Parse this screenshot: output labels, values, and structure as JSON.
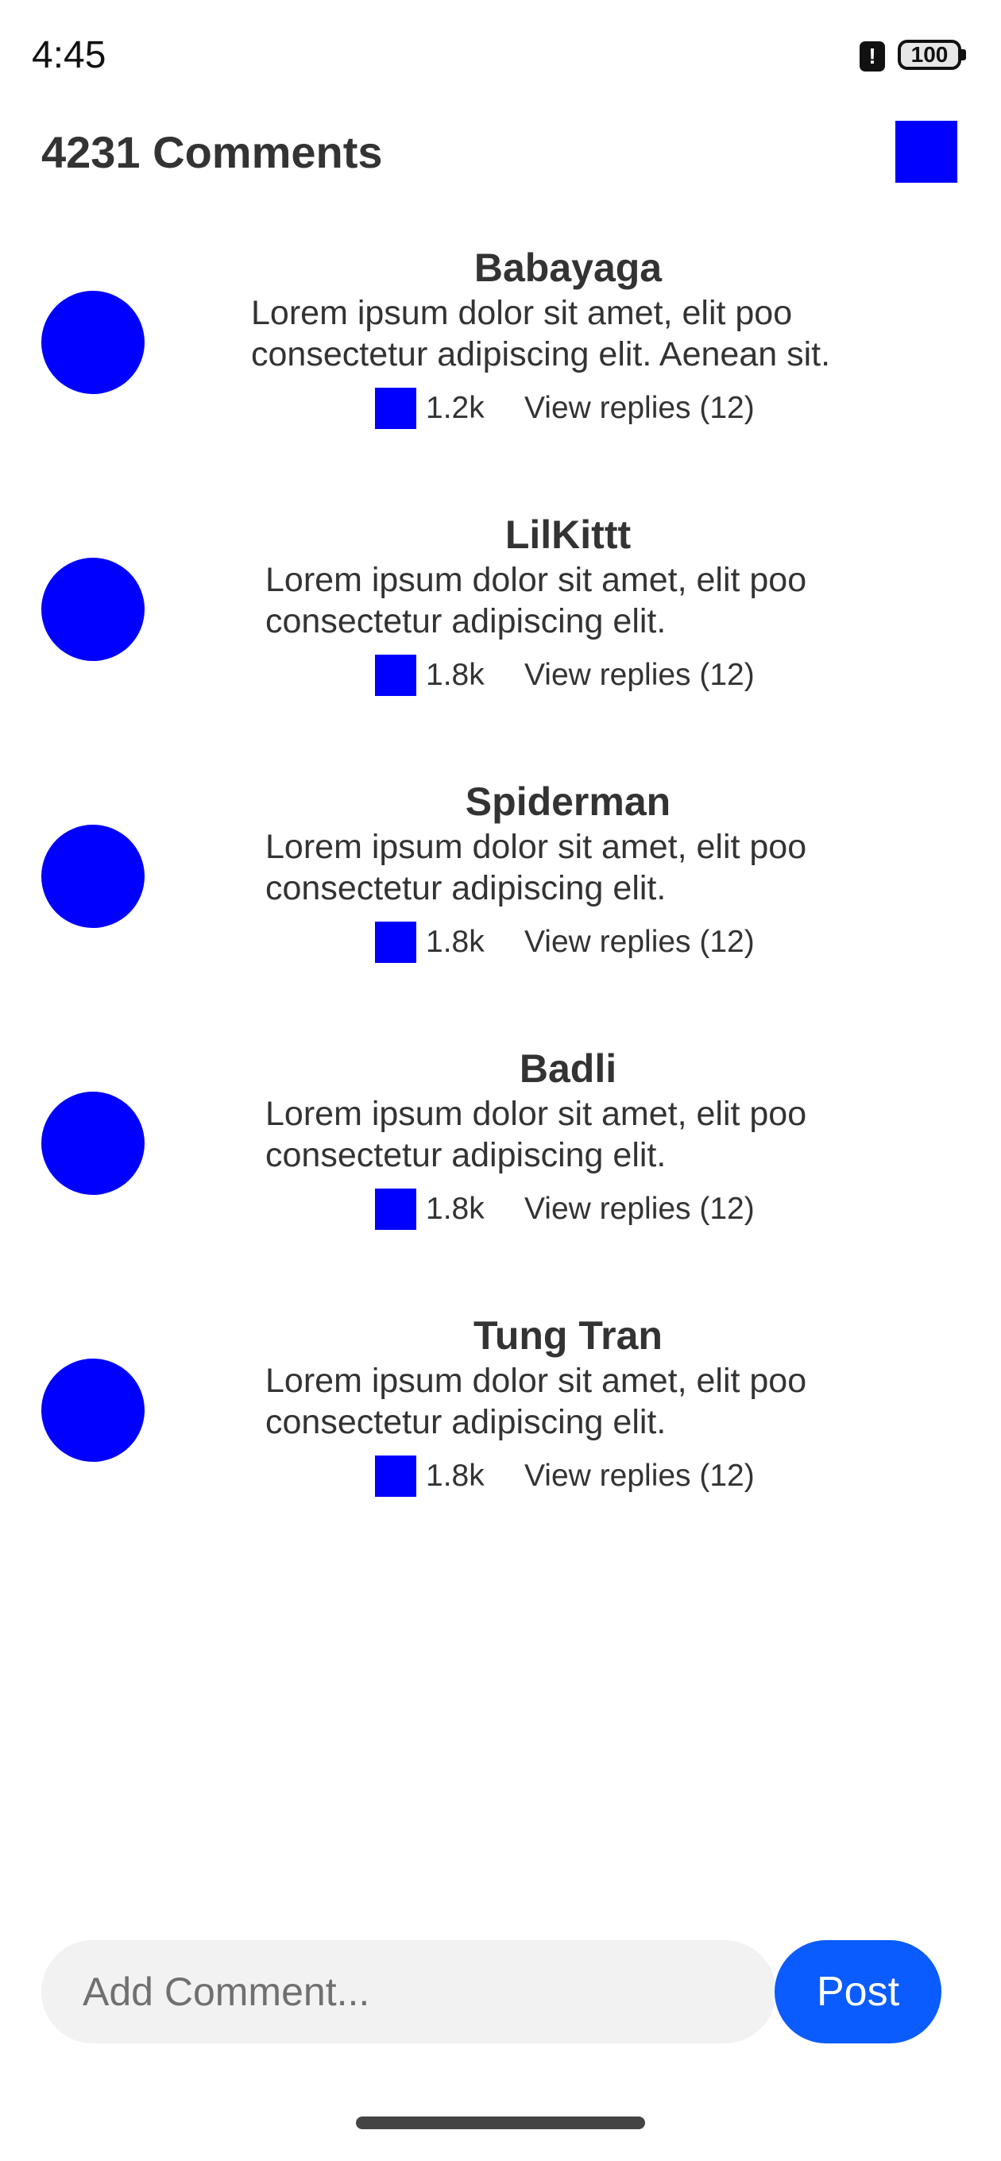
{
  "status_bar": {
    "time": "4:45",
    "alert_glyph": "!",
    "battery_level": "100"
  },
  "header": {
    "title": "4231 Comments"
  },
  "comments": [
    {
      "user": "Babayaga",
      "text": "Lorem ipsum dolor sit amet, elit poo consectetur adipiscing elit. Aenean sit.",
      "likes": "1.2k",
      "replies": "View replies (12)"
    },
    {
      "user": "LilKittt",
      "text": "Lorem ipsum dolor sit amet, elit poo consectetur adipiscing elit.",
      "likes": "1.8k",
      "replies": "View replies (12)"
    },
    {
      "user": "Spiderman",
      "text": "Lorem ipsum dolor sit amet, elit poo consectetur adipiscing elit.",
      "likes": "1.8k",
      "replies": "View replies (12)"
    },
    {
      "user": "Badli",
      "text": "Lorem ipsum dolor sit amet, elit poo consectetur adipiscing elit.",
      "likes": "1.8k",
      "replies": "View replies (12)"
    },
    {
      "user": "Tung Tran",
      "text": "Lorem ipsum dolor sit amet, elit poo consectetur adipiscing elit.",
      "likes": "1.8k",
      "replies": "View replies (12)"
    }
  ],
  "composer": {
    "placeholder": "Add Comment...",
    "value": "",
    "post_label": "Post"
  },
  "colors": {
    "accent": "#0000ff",
    "post_button": "#0a5cff",
    "input_background": "#f2f2f2",
    "text": "#333333"
  },
  "icons": {
    "header_action": "square-placeholder-icon",
    "like": "like-placeholder-icon",
    "avatar": "avatar-circle"
  }
}
